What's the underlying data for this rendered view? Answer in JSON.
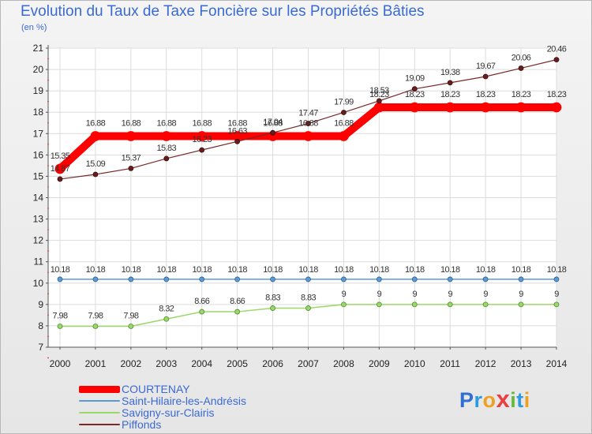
{
  "header": {
    "title": "Evolution du Taux de Taxe Foncière sur les Propriétés Bâties",
    "unit": "(en %)"
  },
  "chart_data": {
    "type": "line",
    "title": "Evolution du Taux de Taxe Foncière sur les Propriétés Bâties",
    "ylabel": "(en %)",
    "xlabel": "",
    "ylim": [
      7,
      21
    ],
    "y_ticks": [
      7,
      8,
      9,
      10,
      11,
      12,
      13,
      14,
      15,
      16,
      17,
      18,
      19,
      20,
      21
    ],
    "grid": true,
    "legend_position": "bottom-left",
    "categories": [
      "2000",
      "2001",
      "2002",
      "2003",
      "2004",
      "2005",
      "2006",
      "2007",
      "2008",
      "2009",
      "2010",
      "2011",
      "2012",
      "2013",
      "2014"
    ],
    "series": [
      {
        "name": "COURTENAY",
        "color": "#ff0000",
        "values": [
          15.35,
          16.88,
          16.88,
          16.88,
          16.88,
          16.88,
          16.88,
          16.88,
          16.88,
          18.23,
          18.23,
          18.23,
          18.23,
          18.23,
          18.23
        ]
      },
      {
        "name": "Saint-Hilaire-les-Andrésis",
        "color": "#5b9bd5",
        "values": [
          10.18,
          10.18,
          10.18,
          10.18,
          10.18,
          10.18,
          10.18,
          10.18,
          10.18,
          10.18,
          10.18,
          10.18,
          10.18,
          10.18,
          10.18
        ]
      },
      {
        "name": "Savigny-sur-Clairis",
        "color": "#9ad86a",
        "values": [
          7.98,
          7.98,
          7.98,
          8.32,
          8.66,
          8.66,
          8.83,
          8.83,
          9,
          9,
          9,
          9,
          9,
          9,
          9
        ]
      },
      {
        "name": "Piffonds",
        "color": "#7a2828",
        "values": [
          14.87,
          15.09,
          15.37,
          15.83,
          16.23,
          16.63,
          17.04,
          17.47,
          17.99,
          18.53,
          19.09,
          19.38,
          19.67,
          20.06,
          20.46
        ]
      }
    ]
  },
  "legend": {
    "items": [
      {
        "label": "COURTENAY",
        "color": "#ff0000"
      },
      {
        "label": "Saint-Hilaire-les-Andrésis",
        "color": "#5b9bd5"
      },
      {
        "label": "Savigny-sur-Clairis",
        "color": "#9ad86a"
      },
      {
        "label": "Piffonds",
        "color": "#7a2828"
      }
    ]
  },
  "brand": {
    "logo_letters": [
      "P",
      "r",
      "o",
      "x",
      "i",
      "t",
      "i"
    ],
    "logo_colors": [
      "#2e6fd1",
      "#2e9be0",
      "#f0a020",
      "#e84040",
      "#62b93a",
      "#2e9be0",
      "#f0a020"
    ]
  }
}
